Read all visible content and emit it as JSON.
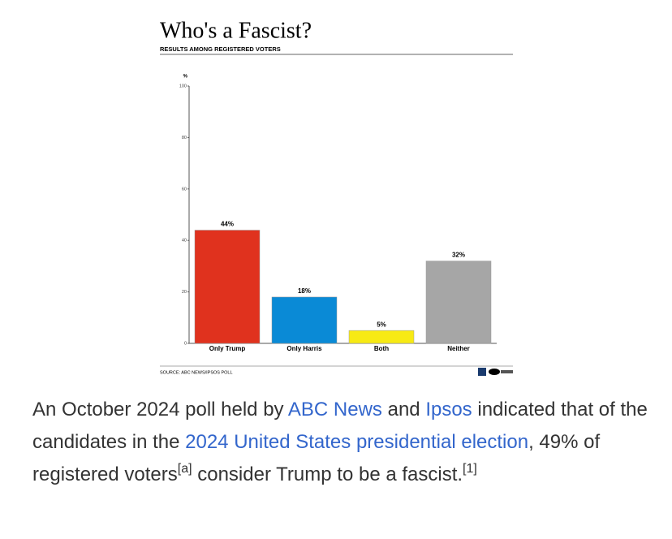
{
  "chart_data": {
    "type": "bar",
    "title": "Who's a Fascist?",
    "subtitle": "RESULTS AMONG REGISTERED VOTERS",
    "y_label": "%",
    "categories": [
      "Only Trump",
      "Only Harris",
      "Both",
      "Neither"
    ],
    "values": [
      44,
      18,
      5,
      32
    ],
    "value_labels": [
      "44%",
      "18%",
      "5%",
      "32%"
    ],
    "colors": [
      "#e0321e",
      "#0a8ad6",
      "#f7ea14",
      "#a6a6a6"
    ],
    "ylim": [
      0,
      100
    ],
    "yticks": [
      0,
      20,
      40,
      60,
      80,
      100
    ],
    "source": "SOURCE: ABC NEWS/IPSOS POLL"
  },
  "caption": {
    "parts": [
      {
        "text": "An October 2024 poll held by ",
        "kind": "text"
      },
      {
        "text": "ABC News",
        "kind": "link"
      },
      {
        "text": " and ",
        "kind": "text"
      },
      {
        "text": "Ipsos",
        "kind": "link"
      },
      {
        "text": " indicated that of the candidates in the ",
        "kind": "text"
      },
      {
        "text": "2024 United States presidential election",
        "kind": "link"
      },
      {
        "text": ", 49% of registered voters",
        "kind": "text"
      },
      {
        "text": "[a]",
        "kind": "sup"
      },
      {
        "text": " consider Trump to be a fascist.",
        "kind": "text"
      },
      {
        "text": "[1]",
        "kind": "sup"
      }
    ]
  }
}
